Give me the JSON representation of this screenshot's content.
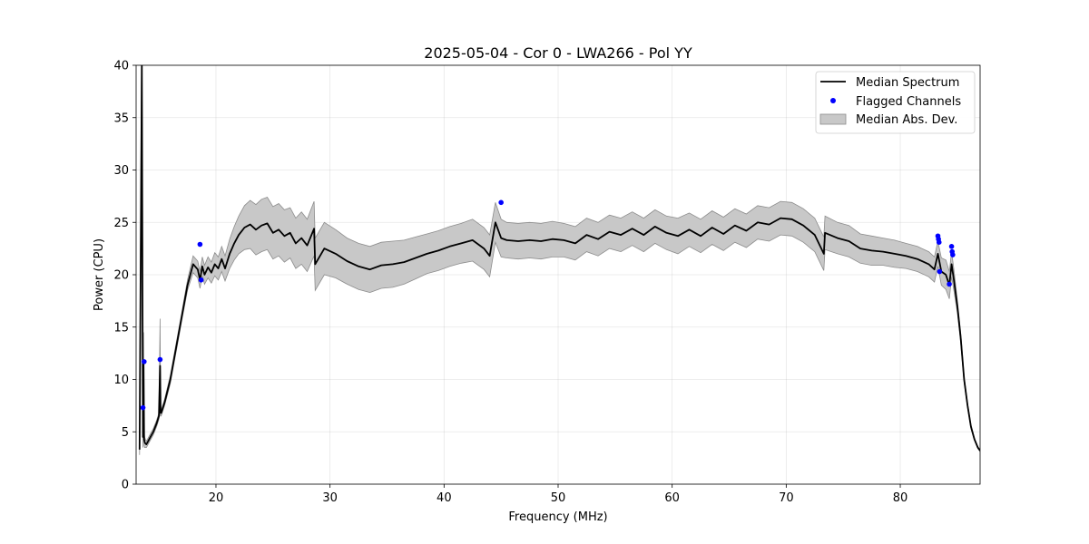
{
  "chart_data": {
    "type": "line",
    "title": "2025-05-04 - Cor 0 - LWA266 - Pol YY",
    "xlabel": "Frequency (MHz)",
    "ylabel": "Power (CPU)",
    "xlim": [
      13,
      87
    ],
    "ylim": [
      0,
      40
    ],
    "xticks": [
      20,
      30,
      40,
      50,
      60,
      70,
      80
    ],
    "yticks": [
      0,
      5,
      10,
      15,
      20,
      25,
      30,
      35,
      40
    ],
    "grid": true,
    "legend": {
      "placement": "upper-right",
      "entries": [
        "Median Spectrum",
        "Flagged Channels",
        "Median Abs. Dev."
      ]
    },
    "colors": {
      "median": "#000000",
      "flagged": "#0000ff",
      "mad_fill": "#c8c8c8",
      "mad_edge": "#8c8c8c"
    },
    "series": [
      {
        "name": "Median Spectrum",
        "x": [
          13.3,
          13.5,
          13.6,
          13.65,
          13.7,
          13.75,
          13.8,
          13.9,
          14.0,
          14.2,
          14.5,
          14.8,
          15.0,
          15.1,
          15.15,
          15.2,
          15.5,
          16.0,
          16.5,
          17.0,
          17.5,
          18.0,
          18.4,
          18.6,
          18.8,
          19.0,
          19.3,
          19.6,
          19.9,
          20.2,
          20.5,
          20.8,
          21.2,
          21.6,
          22.0,
          22.5,
          23.0,
          23.5,
          24.0,
          24.5,
          25.0,
          25.5,
          26.0,
          26.5,
          27.0,
          27.5,
          28.0,
          28.6,
          28.7,
          29.5,
          30.5,
          31.5,
          32.5,
          33.5,
          34.5,
          35.5,
          36.5,
          37.5,
          38.5,
          39.5,
          40.5,
          41.5,
          42.5,
          43.5,
          44.0,
          44.5,
          45.0,
          45.5,
          46.5,
          47.5,
          48.5,
          49.5,
          50.5,
          51.5,
          52.5,
          53.5,
          54.5,
          55.5,
          56.5,
          57.5,
          58.5,
          59.5,
          60.5,
          61.5,
          62.5,
          63.5,
          64.5,
          65.5,
          66.5,
          67.5,
          68.5,
          69.5,
          70.5,
          71.5,
          72.5,
          73.3,
          73.4,
          74.5,
          75.5,
          76.5,
          77.5,
          78.5,
          79.5,
          80.5,
          81.5,
          82.5,
          83.0,
          83.3,
          83.6,
          84.0,
          84.3,
          84.5,
          84.7,
          85.0,
          85.3,
          85.6,
          85.9,
          86.2,
          86.5,
          86.8,
          87.0
        ],
        "values": [
          3.3,
          40,
          4.5,
          11.5,
          4.3,
          4.0,
          3.9,
          3.8,
          4.0,
          4.4,
          5.0,
          5.8,
          6.5,
          11.3,
          6.8,
          6.8,
          7.8,
          10.0,
          13.0,
          16.0,
          19.0,
          21.0,
          20.5,
          19.5,
          20.8,
          20.0,
          20.7,
          20.2,
          21.0,
          20.6,
          21.5,
          20.6,
          22.0,
          23.0,
          23.8,
          24.5,
          24.8,
          24.3,
          24.7,
          24.9,
          24.0,
          24.3,
          23.7,
          24.0,
          23.0,
          23.5,
          22.8,
          24.4,
          21.0,
          22.5,
          22.0,
          21.3,
          20.8,
          20.5,
          20.9,
          21.0,
          21.2,
          21.6,
          22.0,
          22.3,
          22.7,
          23.0,
          23.3,
          22.5,
          21.8,
          25.0,
          23.5,
          23.3,
          23.2,
          23.3,
          23.2,
          23.4,
          23.3,
          23.0,
          23.8,
          23.4,
          24.1,
          23.8,
          24.4,
          23.8,
          24.6,
          24.0,
          23.7,
          24.3,
          23.7,
          24.5,
          23.9,
          24.7,
          24.2,
          25.0,
          24.8,
          25.4,
          25.3,
          24.7,
          23.8,
          22.0,
          24.0,
          23.5,
          23.2,
          22.5,
          22.3,
          22.2,
          22.0,
          21.8,
          21.5,
          21.0,
          20.5,
          22.0,
          20.3,
          20.0,
          19.0,
          21.0,
          19.5,
          17.0,
          14.0,
          10.0,
          7.5,
          5.5,
          4.3,
          3.5,
          3.2
        ],
        "mad": [
          0.5,
          8.0,
          1.0,
          3.0,
          0.6,
          0.5,
          0.4,
          0.3,
          0.3,
          0.3,
          0.3,
          0.3,
          0.3,
          4.5,
          0.3,
          0.3,
          0.3,
          0.4,
          0.4,
          0.4,
          0.5,
          0.8,
          0.8,
          0.8,
          0.9,
          0.9,
          1.0,
          1.0,
          1.1,
          1.1,
          1.2,
          1.2,
          1.4,
          1.6,
          1.8,
          2.1,
          2.3,
          2.4,
          2.5,
          2.5,
          2.5,
          2.5,
          2.5,
          2.4,
          2.4,
          2.5,
          2.5,
          2.6,
          2.5,
          2.5,
          2.3,
          2.2,
          2.2,
          2.2,
          2.2,
          2.2,
          2.1,
          2.0,
          1.9,
          1.9,
          1.9,
          1.9,
          2.0,
          2.0,
          2.0,
          1.9,
          1.8,
          1.7,
          1.7,
          1.7,
          1.7,
          1.7,
          1.6,
          1.6,
          1.6,
          1.6,
          1.6,
          1.6,
          1.6,
          1.6,
          1.6,
          1.6,
          1.7,
          1.6,
          1.6,
          1.6,
          1.6,
          1.6,
          1.6,
          1.6,
          1.6,
          1.6,
          1.6,
          1.6,
          1.6,
          1.6,
          1.6,
          1.5,
          1.5,
          1.4,
          1.4,
          1.3,
          1.3,
          1.2,
          1.2,
          1.2,
          1.2,
          1.2,
          1.3,
          1.4,
          1.3,
          1.2,
          1.0,
          0.6,
          0.5,
          0.3,
          0.2,
          0.2,
          0.1,
          0.1,
          0.1
        ]
      },
      {
        "name": "Flagged Channels",
        "x": [
          13.6,
          13.7,
          15.1,
          18.6,
          18.7,
          45.0,
          83.3,
          83.35,
          83.4,
          83.45,
          84.3,
          84.5,
          84.55,
          84.6
        ],
        "values": [
          7.3,
          11.7,
          11.9,
          22.9,
          19.5,
          26.9,
          23.7,
          23.4,
          23.1,
          20.3,
          19.1,
          22.7,
          22.2,
          21.9
        ]
      },
      {
        "name": "Median Abs. Dev.",
        "type": "band"
      }
    ]
  }
}
